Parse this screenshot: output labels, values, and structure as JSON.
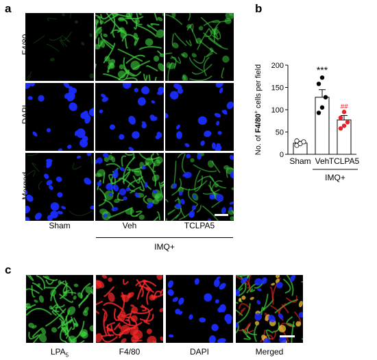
{
  "panels": {
    "a": {
      "letter": "a"
    },
    "b": {
      "letter": "b"
    },
    "c": {
      "letter": "c"
    }
  },
  "panel_a": {
    "row_labels": [
      "F4/80",
      "DAPI",
      "Merged"
    ],
    "col_labels": [
      "Sham",
      "Veh",
      "TCLPA5"
    ],
    "group_label": "IMQ+"
  },
  "panel_c": {
    "labels": [
      "LPA",
      "F4/80",
      "DAPI",
      "Merged"
    ],
    "lpa_subscript": "5"
  },
  "colors": {
    "green": "#3fd23f",
    "blue": "#1a2cff",
    "red": "#ff2a2a",
    "sig_black": "#000000",
    "sig_red": "#e8202a"
  },
  "chart_data": {
    "type": "bar",
    "categories": [
      "Sham",
      "Veh",
      "TCLPA5"
    ],
    "values": [
      25,
      128,
      77
    ],
    "errors": [
      4,
      17,
      10
    ],
    "points": [
      [
        20,
        24,
        28,
        30
      ],
      [
        93,
        105,
        128,
        158,
        172
      ],
      [
        58,
        64,
        72,
        82,
        95
      ]
    ],
    "point_colors": [
      "#ffffff",
      "#000000",
      "#e8202a"
    ],
    "significance": [
      "",
      "***",
      "##"
    ],
    "significance_colors": [
      "#000000",
      "#000000",
      "#e8202a"
    ],
    "ylabel_prefix": "No. of ",
    "ylabel_bold": "F4/80",
    "ylabel_sup": "+",
    "ylabel_suffix": " cells per field",
    "xgroup_label": "IMQ+",
    "ylim": [
      0,
      200
    ],
    "yticks": [
      "0",
      "50",
      "100",
      "150",
      "200"
    ],
    "grid": false
  }
}
